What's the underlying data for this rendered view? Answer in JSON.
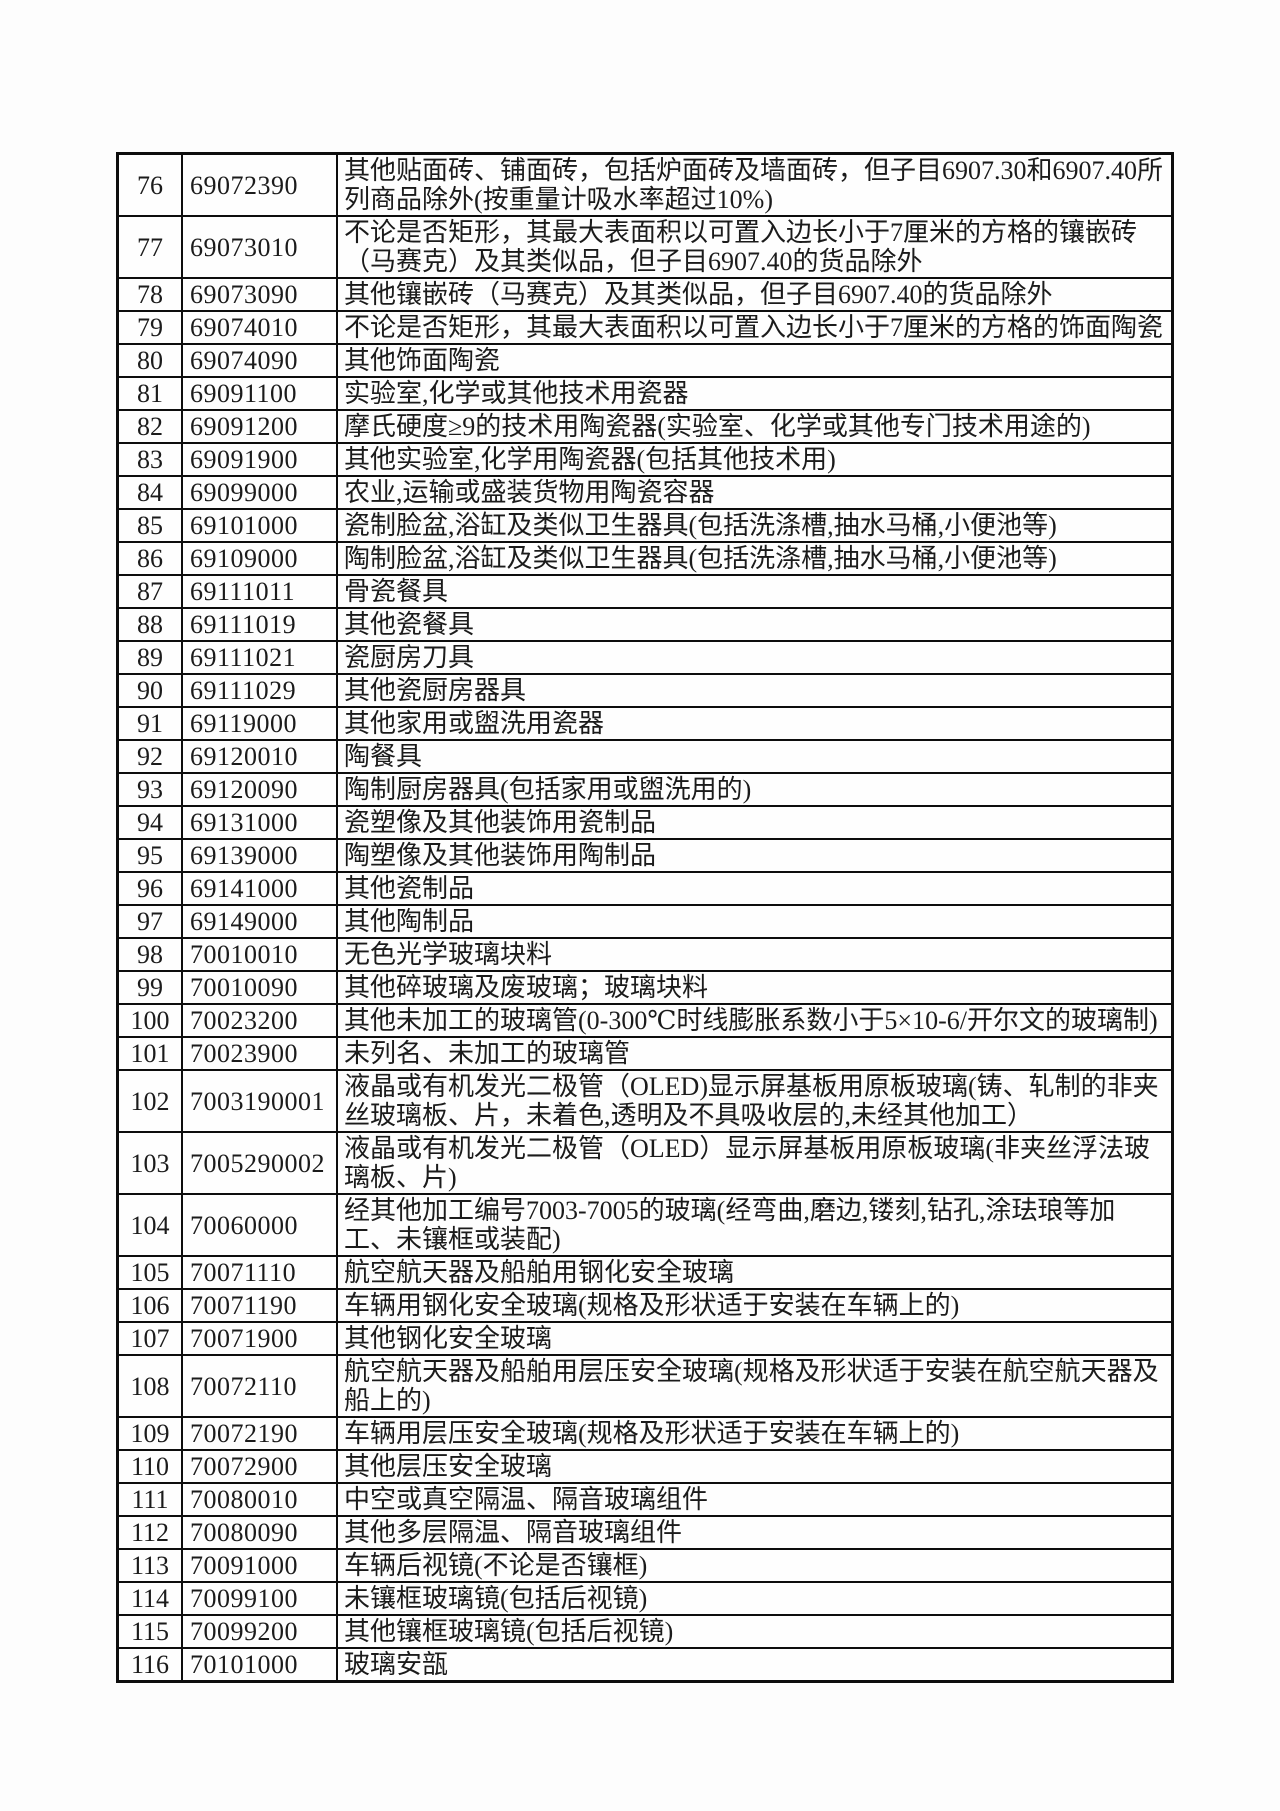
{
  "document": {
    "kind": "hs-code-tariff-table-page",
    "language": "zh-CN",
    "ink_color": "#1b1b1b",
    "border_color": "#0d0d0d",
    "paper_color": "#fdfdfd"
  },
  "table": {
    "rows": [
      {
        "no": "76",
        "code": "69072390",
        "desc": "其他贴面砖、铺面砖，包括炉面砖及墙面砖，但子目6907.30和6907.40所列商品除外(按重量计吸水率超过10%)"
      },
      {
        "no": "77",
        "code": "69073010",
        "desc": "不论是否矩形，其最大表面积以可置入边长小于7厘米的方格的镶嵌砖（马赛克）及其类似品，但子目6907.40的货品除外"
      },
      {
        "no": "78",
        "code": "69073090",
        "desc": "其他镶嵌砖（马赛克）及其类似品，但子目6907.40的货品除外"
      },
      {
        "no": "79",
        "code": "69074010",
        "desc": "不论是否矩形，其最大表面积以可置入边长小于7厘米的方格的饰面陶瓷"
      },
      {
        "no": "80",
        "code": "69074090",
        "desc": "其他饰面陶瓷"
      },
      {
        "no": "81",
        "code": "69091100",
        "desc": "实验室,化学或其他技术用瓷器"
      },
      {
        "no": "82",
        "code": "69091200",
        "desc": "摩氏硬度≥9的技术用陶瓷器(实验室、化学或其他专门技术用途的)"
      },
      {
        "no": "83",
        "code": "69091900",
        "desc": "其他实验室,化学用陶瓷器(包括其他技术用)"
      },
      {
        "no": "84",
        "code": "69099000",
        "desc": "农业,运输或盛装货物用陶瓷容器"
      },
      {
        "no": "85",
        "code": "69101000",
        "desc": "瓷制脸盆,浴缸及类似卫生器具(包括洗涤槽,抽水马桶,小便池等)"
      },
      {
        "no": "86",
        "code": "69109000",
        "desc": "陶制脸盆,浴缸及类似卫生器具(包括洗涤槽,抽水马桶,小便池等)"
      },
      {
        "no": "87",
        "code": "69111011",
        "desc": "骨瓷餐具"
      },
      {
        "no": "88",
        "code": "69111019",
        "desc": "其他瓷餐具"
      },
      {
        "no": "89",
        "code": "69111021",
        "desc": "瓷厨房刀具"
      },
      {
        "no": "90",
        "code": "69111029",
        "desc": "其他瓷厨房器具"
      },
      {
        "no": "91",
        "code": "69119000",
        "desc": "其他家用或盥洗用瓷器"
      },
      {
        "no": "92",
        "code": "69120010",
        "desc": "陶餐具"
      },
      {
        "no": "93",
        "code": "69120090",
        "desc": "陶制厨房器具(包括家用或盥洗用的)"
      },
      {
        "no": "94",
        "code": "69131000",
        "desc": "瓷塑像及其他装饰用瓷制品"
      },
      {
        "no": "95",
        "code": "69139000",
        "desc": "陶塑像及其他装饰用陶制品"
      },
      {
        "no": "96",
        "code": "69141000",
        "desc": "其他瓷制品"
      },
      {
        "no": "97",
        "code": "69149000",
        "desc": "其他陶制品"
      },
      {
        "no": "98",
        "code": "70010010",
        "desc": "无色光学玻璃块料"
      },
      {
        "no": "99",
        "code": "70010090",
        "desc": "其他碎玻璃及废玻璃；玻璃块料"
      },
      {
        "no": "100",
        "code": "70023200",
        "desc": "其他未加工的玻璃管(0-300℃时线膨胀系数小于5×10-6/开尔文的玻璃制)"
      },
      {
        "no": "101",
        "code": "70023900",
        "desc": "未列名、未加工的玻璃管"
      },
      {
        "no": "102",
        "code": "7003190001",
        "desc": "液晶或有机发光二极管（OLED)显示屏基板用原板玻璃(铸、轧制的非夹丝玻璃板、片，未着色,透明及不具吸收层的,未经其他加工）"
      },
      {
        "no": "103",
        "code": "7005290002",
        "desc": "液晶或有机发光二极管（OLED）显示屏基板用原板玻璃(非夹丝浮法玻璃板、片)"
      },
      {
        "no": "104",
        "code": "70060000",
        "desc": "经其他加工编号7003-7005的玻璃(经弯曲,磨边,镂刻,钻孔,涂珐琅等加工、未镶框或装配)"
      },
      {
        "no": "105",
        "code": "70071110",
        "desc": "航空航天器及船舶用钢化安全玻璃"
      },
      {
        "no": "106",
        "code": "70071190",
        "desc": "车辆用钢化安全玻璃(规格及形状适于安装在车辆上的)"
      },
      {
        "no": "107",
        "code": "70071900",
        "desc": "其他钢化安全玻璃"
      },
      {
        "no": "108",
        "code": "70072110",
        "desc": "航空航天器及船舶用层压安全玻璃(规格及形状适于安装在航空航天器及船上的)"
      },
      {
        "no": "109",
        "code": "70072190",
        "desc": "车辆用层压安全玻璃(规格及形状适于安装在车辆上的)"
      },
      {
        "no": "110",
        "code": "70072900",
        "desc": "其他层压安全玻璃"
      },
      {
        "no": "111",
        "code": "70080010",
        "desc": "中空或真空隔温、隔音玻璃组件"
      },
      {
        "no": "112",
        "code": "70080090",
        "desc": "其他多层隔温、隔音玻璃组件"
      },
      {
        "no": "113",
        "code": "70091000",
        "desc": "车辆后视镜(不论是否镶框)"
      },
      {
        "no": "114",
        "code": "70099100",
        "desc": "未镶框玻璃镜(包括后视镜)"
      },
      {
        "no": "115",
        "code": "70099200",
        "desc": "其他镶框玻璃镜(包括后视镜)"
      },
      {
        "no": "116",
        "code": "70101000",
        "desc": "玻璃安瓿"
      }
    ]
  }
}
